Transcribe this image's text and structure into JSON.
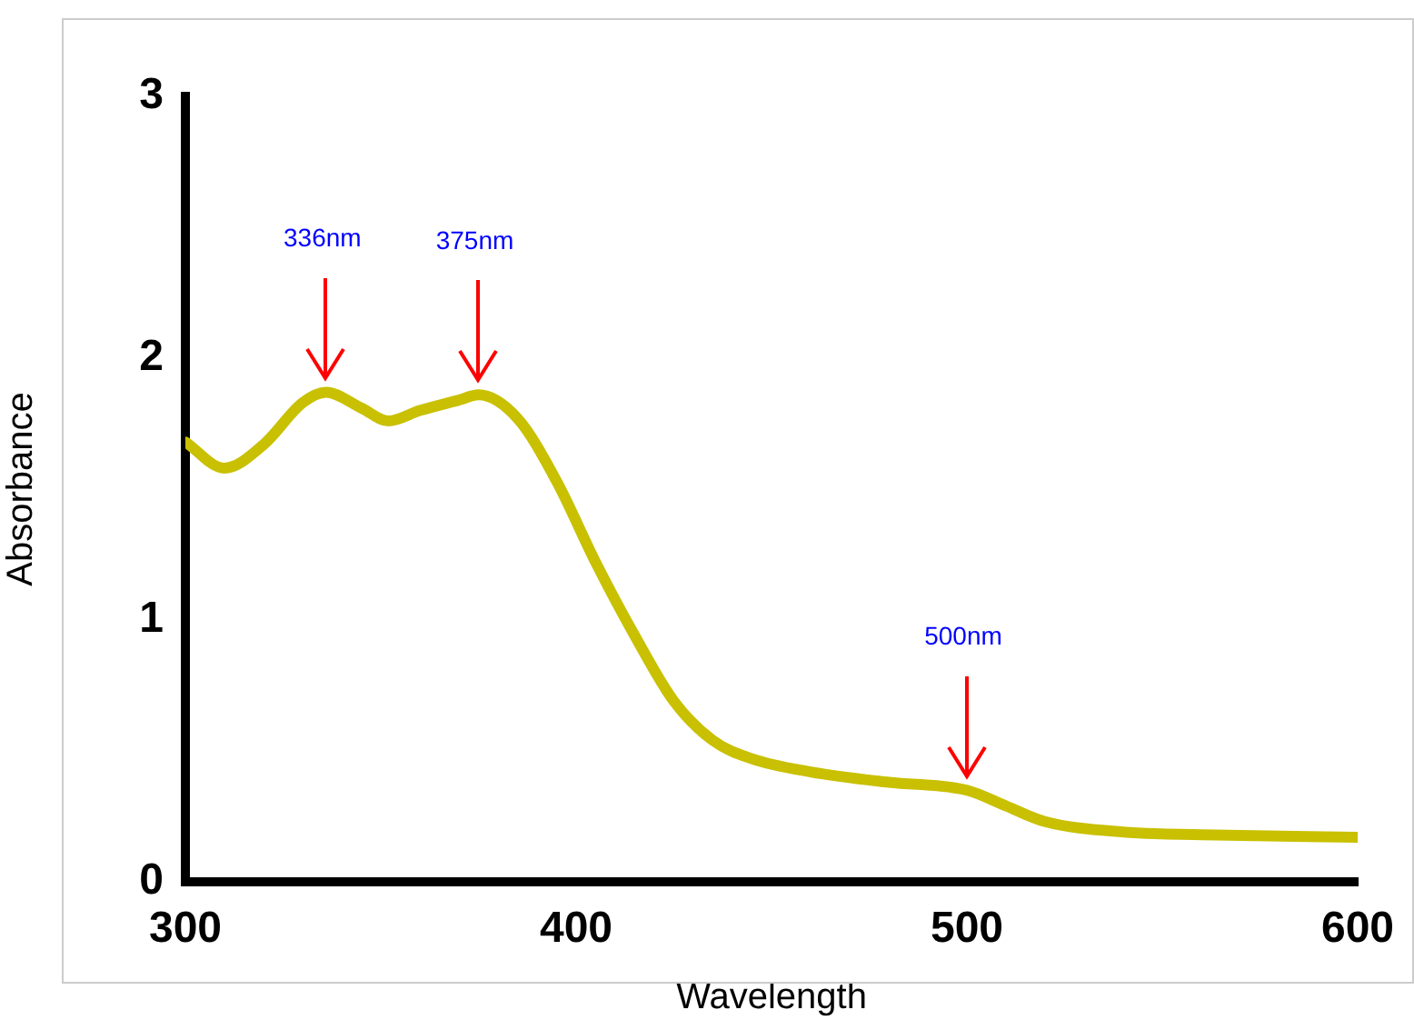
{
  "chart_data": {
    "type": "line",
    "xlabel": "Wavelength",
    "ylabel": "Absorbance",
    "x": [
      300,
      310,
      320,
      330,
      336,
      345,
      352,
      360,
      370,
      375,
      385,
      395,
      405,
      415,
      425,
      435,
      445,
      460,
      480,
      500,
      510,
      520,
      540,
      560,
      600
    ],
    "series": [
      {
        "color": "#c8c000",
        "values": [
          1.68,
          1.58,
          1.67,
          1.83,
          1.87,
          1.81,
          1.76,
          1.8,
          1.84,
          1.86,
          1.77,
          1.53,
          1.22,
          0.94,
          0.69,
          0.54,
          0.47,
          0.42,
          0.38,
          0.35,
          0.29,
          0.23,
          0.19,
          0.18,
          0.17
        ]
      }
    ],
    "xlim": [
      300,
      600
    ],
    "xticks": [
      300,
      400,
      500,
      600
    ],
    "ylim": [
      0,
      3
    ],
    "yticks": [
      0,
      1,
      2,
      3
    ],
    "grid": false,
    "legend": false,
    "marker": "none",
    "line_style": "solid",
    "annotations": [
      {
        "text": "336nm",
        "x": 336,
        "y": 1.87
      },
      {
        "text": "375nm",
        "x": 375,
        "y": 1.86
      },
      {
        "text": "500nm",
        "x": 500,
        "y": 0.35
      }
    ]
  }
}
